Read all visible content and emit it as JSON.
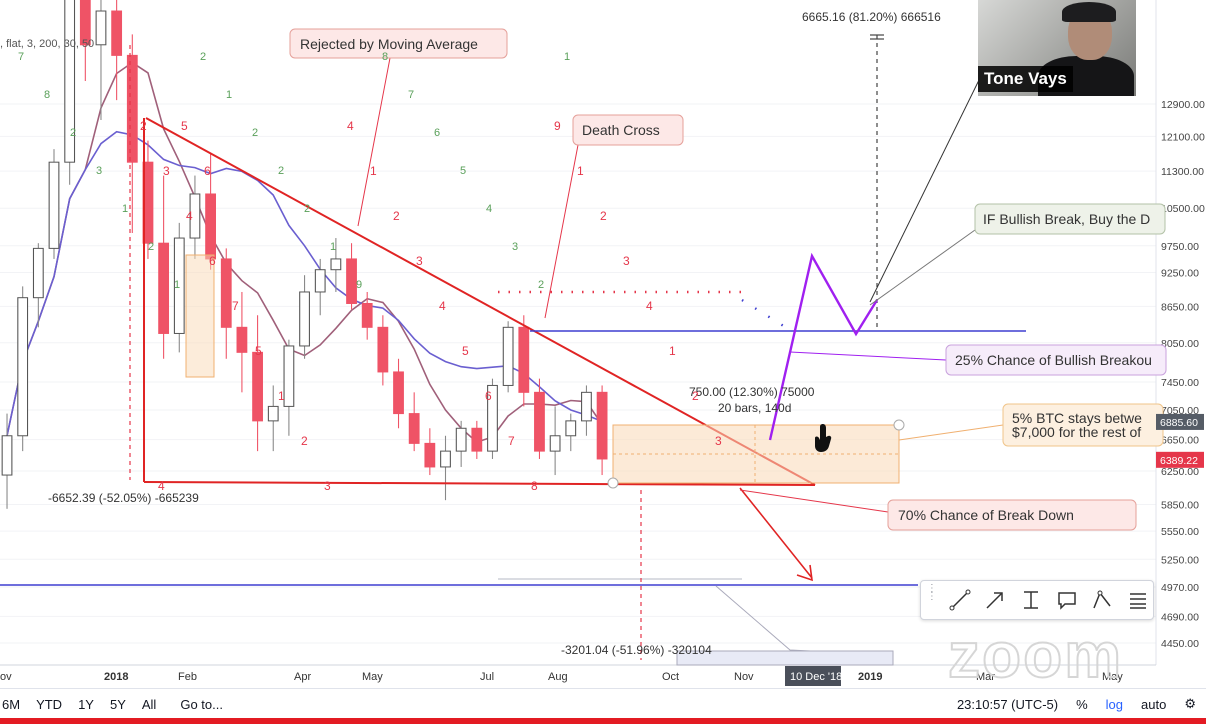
{
  "indicator_legend": ", flat, 3, 200, 30, 50",
  "webcam": {
    "name": "Tone Vays"
  },
  "colors": {
    "bull": "#ffffff",
    "bear": "#ef5366",
    "trend": "#e02424",
    "ma_fast": "#a0607a",
    "ma_slow": "#6a5fd0",
    "hline": "#3f3fd0",
    "projection": "#a020f0"
  },
  "annotations": {
    "rejected": "Rejected by Moving Average",
    "death_cross": "Death Cross",
    "bullish_break": "IF Bullish Break, Buy the D",
    "chance_bullish": "25% Chance of Bullish Breakou",
    "btc_stays_1": "5% BTC stays betwe",
    "btc_stays_2": "$7,000 for the rest of",
    "breakdown": "70% Chance of Break Down"
  },
  "measurements": {
    "top": "6665.16 (81.20%) 666516",
    "left": "-6652.39 (-52.05%) -665239",
    "range1": "750.00 (12.30%) 75000",
    "range2": "20 bars, 140d",
    "bottom": "-3201.04 (-51.96%) -320104"
  },
  "chart_data": {
    "type": "candlestick",
    "title": "",
    "scale": "log",
    "price_axis_ticks": [
      "12900.00",
      "12100.00",
      "11300.00",
      "10500.00",
      "9750.00",
      "9250.00",
      "8650.00",
      "8050.00",
      "7450.00",
      "7050.00",
      "6650.00",
      "6250.00",
      "5850.00",
      "5550.00",
      "5250.00",
      "4970.00",
      "4690.00",
      "4450.00"
    ],
    "price_badges": [
      {
        "value": "6885.60",
        "color": "#555c66"
      },
      {
        "value": "6389.22",
        "color": "#e5364a"
      }
    ],
    "time_axis_labels": [
      "ov",
      "2018",
      "Feb",
      "Apr",
      "May",
      "Jul",
      "Aug",
      "Oct",
      "Nov",
      "Mar",
      "May"
    ],
    "time_highlight": "10 Dec '18",
    "time_year_label": "2019",
    "td_counts_green": [
      "7",
      "8",
      "2",
      "3",
      "1",
      "2",
      "1",
      "2",
      "1",
      "2",
      "2",
      "2",
      "1",
      "9",
      "8",
      "7",
      "6",
      "5",
      "4",
      "3",
      "2",
      "1"
    ],
    "td_counts_red": [
      "2",
      "3",
      "4",
      "6",
      "7",
      "5",
      "1",
      "2",
      "3",
      "4",
      "1",
      "2",
      "3",
      "4",
      "5",
      "6",
      "7",
      "8",
      "9",
      "1",
      "2",
      "3",
      "4",
      "1",
      "2",
      "3",
      "4",
      "5",
      "6"
    ],
    "candles_weekly": [
      {
        "o": 6200,
        "h": 7000,
        "l": 5800,
        "c": 6700
      },
      {
        "o": 6700,
        "h": 9000,
        "l": 6500,
        "c": 8800
      },
      {
        "o": 8800,
        "h": 9800,
        "l": 8300,
        "c": 9700
      },
      {
        "o": 9700,
        "h": 11800,
        "l": 9500,
        "c": 11500
      },
      {
        "o": 11500,
        "h": 17000,
        "l": 11000,
        "c": 16800
      },
      {
        "o": 16800,
        "h": 19500,
        "l": 13500,
        "c": 14500
      },
      {
        "o": 14500,
        "h": 17200,
        "l": 12500,
        "c": 15500
      },
      {
        "o": 15500,
        "h": 17000,
        "l": 13000,
        "c": 14200
      },
      {
        "o": 14200,
        "h": 14800,
        "l": 10000,
        "c": 11500
      },
      {
        "o": 11500,
        "h": 12000,
        "l": 9500,
        "c": 9800
      },
      {
        "o": 9800,
        "h": 11200,
        "l": 7800,
        "c": 8200
      },
      {
        "o": 8200,
        "h": 10200,
        "l": 7900,
        "c": 9900
      },
      {
        "o": 9900,
        "h": 11200,
        "l": 9500,
        "c": 10800
      },
      {
        "o": 10800,
        "h": 11700,
        "l": 9300,
        "c": 9500
      },
      {
        "o": 9500,
        "h": 9700,
        "l": 7800,
        "c": 8300
      },
      {
        "o": 8300,
        "h": 8900,
        "l": 7300,
        "c": 7900
      },
      {
        "o": 7900,
        "h": 8500,
        "l": 6500,
        "c": 6900
      },
      {
        "o": 6900,
        "h": 7400,
        "l": 6500,
        "c": 7100
      },
      {
        "o": 7100,
        "h": 8100,
        "l": 6700,
        "c": 8000
      },
      {
        "o": 8000,
        "h": 9200,
        "l": 7800,
        "c": 8900
      },
      {
        "o": 8900,
        "h": 9500,
        "l": 8500,
        "c": 9300
      },
      {
        "o": 9300,
        "h": 9900,
        "l": 8900,
        "c": 9500
      },
      {
        "o": 9500,
        "h": 9800,
        "l": 8600,
        "c": 8700
      },
      {
        "o": 8700,
        "h": 8900,
        "l": 8100,
        "c": 8300
      },
      {
        "o": 8300,
        "h": 8500,
        "l": 7400,
        "c": 7600
      },
      {
        "o": 7600,
        "h": 7800,
        "l": 6800,
        "c": 7000
      },
      {
        "o": 7000,
        "h": 7300,
        "l": 6500,
        "c": 6600
      },
      {
        "o": 6600,
        "h": 6800,
        "l": 6200,
        "c": 6300
      },
      {
        "o": 6300,
        "h": 6700,
        "l": 5900,
        "c": 6500
      },
      {
        "o": 6500,
        "h": 6900,
        "l": 6300,
        "c": 6800
      },
      {
        "o": 6800,
        "h": 6900,
        "l": 6400,
        "c": 6500
      },
      {
        "o": 6500,
        "h": 7500,
        "l": 6400,
        "c": 7400
      },
      {
        "o": 7400,
        "h": 8400,
        "l": 7300,
        "c": 8300
      },
      {
        "o": 8300,
        "h": 8500,
        "l": 7100,
        "c": 7300
      },
      {
        "o": 7300,
        "h": 7500,
        "l": 6400,
        "c": 6500
      },
      {
        "o": 6500,
        "h": 7100,
        "l": 6200,
        "c": 6700
      },
      {
        "o": 6700,
        "h": 7000,
        "l": 6500,
        "c": 6900
      },
      {
        "o": 6900,
        "h": 7400,
        "l": 6700,
        "c": 7300
      },
      {
        "o": 7300,
        "h": 7400,
        "l": 6200,
        "c": 6400
      }
    ],
    "horizontal_levels": [
      8100,
      4970
    ],
    "moving_averages": [
      "fast",
      "slow"
    ]
  },
  "bottombar": {
    "ranges": [
      "6M",
      "YTD",
      "1Y",
      "5Y",
      "All"
    ],
    "goto": "Go to...",
    "time": "23:10:57 (UTC-5)",
    "pct": "%",
    "log": "log",
    "auto": "auto"
  },
  "watermark": "zoom"
}
